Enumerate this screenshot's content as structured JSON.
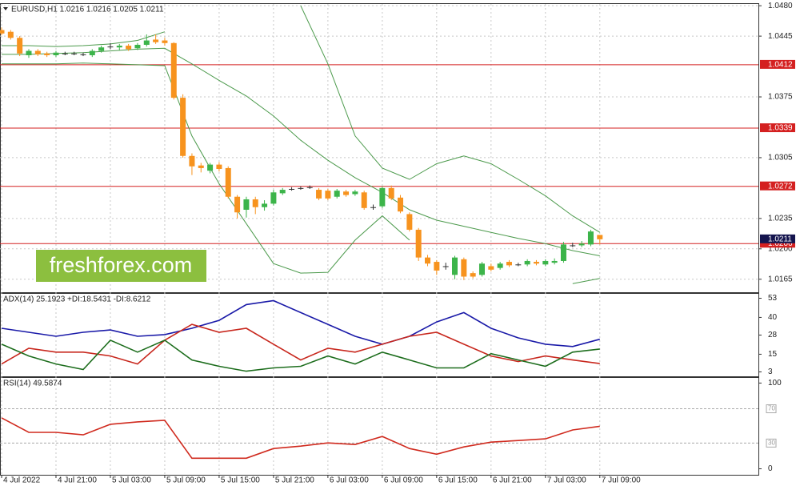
{
  "chart_data": [
    {
      "type": "candlestick",
      "title": "EURUSD,H1  1.0216 1.0216 1.0205 1.0211",
      "watermark": "freshforex.com",
      "categories": [
        "4 Jul 2022",
        null,
        null,
        null,
        null,
        null,
        "4 Jul 21:00",
        null,
        null,
        null,
        null,
        null,
        "5 Jul 03:00",
        null,
        null,
        null,
        null,
        null,
        "5 Jul 09:00",
        null,
        null,
        null,
        null,
        null,
        "5 Jul 15:00",
        null,
        null,
        null,
        null,
        null,
        "5 Jul 21:00",
        null,
        null,
        null,
        null,
        null,
        "6 Jul 03:00",
        null,
        null,
        null,
        null,
        null,
        "6 Jul 09:00",
        null,
        null,
        null,
        null,
        null,
        "6 Jul 15:00",
        null,
        null,
        null,
        null,
        null,
        "6 Jul 21:00",
        null,
        null,
        null,
        null,
        null,
        "7 Jul 03:00",
        null,
        null,
        null,
        null,
        null,
        "7 Jul 09:00"
      ],
      "open": [
        1.0452,
        1.045,
        1.0443,
        1.0423,
        1.0428,
        1.0425,
        1.0423,
        1.0425,
        1.0425,
        1.0424,
        1.0423,
        1.0428,
        1.0433,
        1.0432,
        1.0434,
        1.0431,
        1.0435,
        1.0441,
        1.044,
        1.0437,
        1.0374,
        1.0307,
        1.0296,
        1.029,
        1.0297,
        1.0293,
        1.026,
        1.0245,
        1.0257,
        1.0248,
        1.0252,
        1.0264,
        1.0269,
        1.027,
        1.0271,
        1.0268,
        1.0267,
        1.026,
        1.0266,
        1.0263,
        1.0265,
        1.0248,
        1.0249,
        1.027,
        1.0259,
        1.024,
        1.0222,
        1.019,
        1.0185,
        1.018,
        1.017,
        1.0188,
        1.0172,
        1.017,
        1.018,
        1.0178,
        1.0185,
        1.0182,
        1.0182,
        1.0185,
        1.0182,
        1.0184,
        1.0186,
        1.0204,
        1.0204,
        1.0205,
        1.0216
      ],
      "high": [
        1.0455,
        1.0452,
        1.0445,
        1.043,
        1.043,
        1.0427,
        1.0428,
        1.0427,
        1.0427,
        1.0426,
        1.043,
        1.0434,
        1.0437,
        1.0436,
        1.0436,
        1.0437,
        1.0447,
        1.0447,
        1.0443,
        1.0438,
        1.0378,
        1.031,
        1.0299,
        1.0299,
        1.03,
        1.0295,
        1.0262,
        1.026,
        1.026,
        1.0256,
        1.0268,
        1.027,
        1.0271,
        1.0272,
        1.0273,
        1.027,
        1.0269,
        1.0269,
        1.0268,
        1.0268,
        1.0267,
        1.0251,
        1.0272,
        1.0273,
        1.0262,
        1.0242,
        1.0224,
        1.0193,
        1.0187,
        1.0184,
        1.0192,
        1.019,
        1.0174,
        1.0185,
        1.0183,
        1.0185,
        1.0187,
        1.0184,
        1.0188,
        1.0187,
        1.0188,
        1.0189,
        1.0208,
        1.0207,
        1.0209,
        1.0222,
        1.0216
      ],
      "low": [
        1.0446,
        1.0441,
        1.0422,
        1.042,
        1.0422,
        1.0421,
        1.0421,
        1.0423,
        1.0423,
        1.0422,
        1.0421,
        1.0426,
        1.043,
        1.0429,
        1.0428,
        1.0429,
        1.0433,
        1.0436,
        1.0434,
        1.0372,
        1.0305,
        1.0285,
        1.0288,
        1.0287,
        1.0289,
        1.0258,
        1.0235,
        1.0236,
        1.024,
        1.0244,
        1.025,
        1.0262,
        1.0267,
        1.0268,
        1.0269,
        1.0256,
        1.0256,
        1.0258,
        1.026,
        1.0261,
        1.0245,
        1.0245,
        1.0247,
        1.0256,
        1.0241,
        1.022,
        1.0186,
        1.018,
        1.017,
        1.0176,
        1.0165,
        1.0164,
        1.0166,
        1.0168,
        1.0174,
        1.0176,
        1.0179,
        1.018,
        1.018,
        1.0181,
        1.018,
        1.0182,
        1.0184,
        1.0202,
        1.0202,
        1.0203,
        1.0205
      ],
      "close": [
        1.0448,
        1.0443,
        1.0425,
        1.0428,
        1.0424,
        1.0423,
        1.0426,
        1.0425,
        1.0425,
        1.0424,
        1.0428,
        1.0432,
        1.0433,
        1.0434,
        1.043,
        1.0435,
        1.044,
        1.0438,
        1.0437,
        1.0374,
        1.0307,
        1.0295,
        1.0293,
        1.0297,
        1.0292,
        1.026,
        1.0242,
        1.0257,
        1.0248,
        1.0252,
        1.0265,
        1.0268,
        1.0269,
        1.027,
        1.0271,
        1.0258,
        1.0258,
        1.0267,
        1.0262,
        1.0266,
        1.0247,
        1.0248,
        1.027,
        1.0258,
        1.0243,
        1.0222,
        1.019,
        1.0183,
        1.0175,
        1.018,
        1.019,
        1.0168,
        1.0168,
        1.0183,
        1.0176,
        1.0183,
        1.0181,
        1.0182,
        1.0186,
        1.0183,
        1.0186,
        1.0186,
        1.0205,
        1.0204,
        1.0206,
        1.022,
        1.0211
      ],
      "up_color": "#3cb44a",
      "down_color": "#f7931e",
      "series": [
        {
          "color": "#4c9a4c",
          "x": [
            0,
            3,
            6,
            9,
            12,
            15,
            18,
            21,
            24,
            27,
            30,
            33,
            36,
            39,
            42,
            45,
            48,
            51,
            54,
            57,
            60,
            63,
            66
          ],
          "values": [
            1.0434,
            1.0434,
            1.0433,
            1.0434,
            1.0436,
            1.044,
            1.045,
            null,
            null,
            null,
            null,
            1.048,
            1.0413,
            1.033,
            1.0293,
            1.028,
            1.0298,
            1.0307,
            1.0298,
            1.028,
            1.0261,
            1.0238,
            1.0219
          ]
        },
        {
          "color": "#4c9a4c",
          "x": [
            0,
            3,
            6,
            9,
            12,
            15,
            18,
            21,
            24,
            27,
            30,
            33,
            36,
            39,
            42,
            45,
            48,
            51,
            54,
            57,
            60,
            63,
            66
          ],
          "values": [
            1.0424,
            1.0424,
            1.0425,
            1.0426,
            1.0428,
            1.043,
            1.0431,
            1.0413,
            1.0394,
            1.0376,
            1.0353,
            1.0325,
            1.0302,
            1.0282,
            1.0265,
            1.0245,
            1.0233,
            1.0226,
            1.0219,
            1.0212,
            1.0206,
            1.0198,
            1.0192
          ]
        },
        {
          "color": "#4c9a4c",
          "x": [
            0,
            3,
            6,
            9,
            12,
            15,
            18,
            21,
            24,
            27,
            30,
            33,
            36,
            39,
            42,
            45,
            48,
            51,
            54,
            57,
            60,
            63,
            66
          ],
          "values": [
            1.0413,
            1.0413,
            1.0413,
            1.0414,
            1.0413,
            1.0412,
            1.0411,
            1.033,
            1.0275,
            1.0229,
            1.0183,
            1.0172,
            1.0173,
            1.021,
            1.0238,
            1.021,
            null,
            null,
            null,
            null,
            null,
            1.016,
            1.0166
          ]
        }
      ],
      "levels": [
        1.0412,
        1.0339,
        1.0272,
        1.0206
      ],
      "level_color": "#d42020",
      "last_price": 1.0211,
      "last_price_color": "#14144e",
      "ylim": [
        1.015,
        1.0482
      ],
      "yticks": [
        {
          "value": 1.048,
          "label": "1.0480"
        },
        1.0445,
        1.0375,
        1.0305,
        1.0235,
        {
          "value": 1.02,
          "label": "1.0200"
        },
        1.0165
      ],
      "grid": true
    },
    {
      "type": "line",
      "title": "ADX(14) 25.1923 +DI:18.5431 -DI:8.6212",
      "series": [
        {
          "color": "#1a1aa8",
          "x": [
            0,
            3,
            6,
            9,
            12,
            15,
            18,
            21,
            24,
            27,
            30,
            33,
            36,
            39,
            42,
            45,
            48,
            51,
            54,
            57,
            60,
            63,
            66
          ],
          "values": [
            32.6,
            29.9,
            27.2,
            29.9,
            31.5,
            27.2,
            28.3,
            32.6,
            38,
            48.7,
            51.4,
            43.3,
            35.3,
            27.2,
            21.8,
            27.2,
            36.9,
            43.3,
            32.6,
            26.1,
            21.8,
            20.2,
            25.19
          ]
        },
        {
          "color": "#c8281e",
          "x": [
            0,
            3,
            6,
            9,
            12,
            15,
            18,
            21,
            24,
            27,
            30,
            33,
            36,
            39,
            42,
            45,
            48,
            51,
            54,
            57,
            60,
            63,
            66
          ],
          "values": [
            8.4,
            19.1,
            16.4,
            16.4,
            13.8,
            8.4,
            24.5,
            35.3,
            29.9,
            32.6,
            21.8,
            11.1,
            19.1,
            16.4,
            21.8,
            27.2,
            29.9,
            21.8,
            13.8,
            10,
            13.8,
            11.1,
            8.62
          ]
        },
        {
          "color": "#1e6e1e",
          "x": [
            0,
            3,
            6,
            9,
            12,
            15,
            18,
            21,
            24,
            27,
            30,
            33,
            36,
            39,
            42,
            45,
            48,
            51,
            54,
            57,
            60,
            63,
            66
          ],
          "values": [
            21.8,
            13.8,
            8.4,
            4.6,
            24.5,
            16.4,
            24.5,
            11.1,
            6.8,
            3.5,
            5.7,
            6.8,
            13.8,
            8.4,
            16.4,
            11.1,
            5.7,
            5.7,
            15.4,
            11.1,
            6.8,
            16.4,
            18.54
          ]
        }
      ],
      "ylim": [
        0,
        56
      ],
      "yticks": [
        53,
        40,
        28,
        15,
        3
      ],
      "grid": false
    },
    {
      "type": "line",
      "title": "RSI(14) 49.5874",
      "series": [
        {
          "color": "#d02a1e",
          "x": [
            0,
            3,
            6,
            9,
            12,
            15,
            18,
            21,
            24,
            27,
            30,
            33,
            36,
            39,
            42,
            45,
            48,
            51,
            54,
            57,
            60,
            63,
            66
          ],
          "values": [
            59.4,
            42.5,
            42.5,
            39.6,
            51.9,
            54.7,
            56.6,
            12.3,
            12.3,
            12.3,
            23.6,
            26.4,
            30.2,
            28.3,
            37.7,
            23.6,
            17,
            25.5,
            31.1,
            33,
            34.9,
            45.3,
            49.59
          ]
        }
      ],
      "levels": [
        70,
        30
      ],
      "level_color": "#aaaaaa",
      "ylim": [
        -7,
        106
      ],
      "yticks": [
        100,
        0
      ],
      "grid": false
    }
  ]
}
